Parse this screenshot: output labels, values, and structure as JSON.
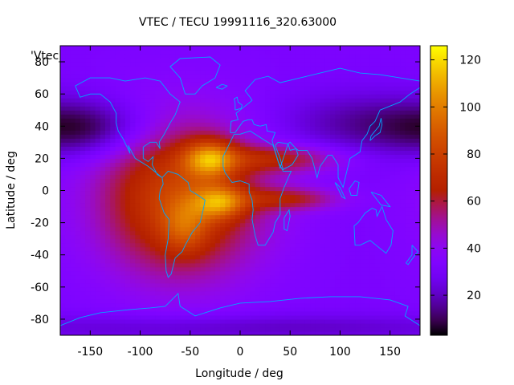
{
  "chart_data": {
    "type": "heatmap",
    "title": "VTEC / TECU 19991116_320.63000",
    "xlabel": "Longitude / deg",
    "ylabel": "Latitude / deg",
    "legend_label": "'Vtec_",
    "xlim": [
      -180,
      180
    ],
    "ylim": [
      -90,
      90
    ],
    "x_ticks": [
      -150,
      -100,
      -50,
      0,
      50,
      100,
      150
    ],
    "y_ticks": [
      -80,
      -60,
      -40,
      -20,
      0,
      20,
      40,
      60,
      80
    ],
    "x_tick_labels": [
      "-150",
      "-100",
      "-50",
      "0",
      "50",
      "100",
      "150"
    ],
    "y_tick_labels": [
      "-80",
      "-60",
      "-40",
      "-20",
      "0",
      "20",
      "40",
      "60",
      "80"
    ],
    "colorbar": {
      "range": [
        3,
        126
      ],
      "ticks": [
        20,
        40,
        60,
        80,
        100,
        120
      ],
      "tick_labels": [
        "20",
        "40",
        "60",
        "80",
        "100",
        "120"
      ],
      "palette": "black-purple-red-orange-yellow"
    },
    "grid": {
      "lon_step": 5,
      "lat_step": 2.5,
      "background_vtec": 32,
      "blobs": [
        {
          "lon": -60,
          "lat": -5,
          "sigma_lon": 58,
          "sigma_lat": 34,
          "amp": 50
        },
        {
          "lon": -30,
          "lat": 20,
          "sigma_lon": 18,
          "sigma_lat": 8,
          "amp": 45
        },
        {
          "lon": -20,
          "lat": -7,
          "sigma_lon": 18,
          "sigma_lat": 7,
          "amp": 40
        },
        {
          "lon": 40,
          "lat": 20,
          "sigma_lon": 45,
          "sigma_lat": 6,
          "amp": 28
        },
        {
          "lon": 50,
          "lat": -5,
          "sigma_lon": 35,
          "sigma_lat": 5,
          "amp": 26
        },
        {
          "lon": -55,
          "lat": -22,
          "sigma_lon": 16,
          "sigma_lat": 12,
          "amp": 22
        },
        {
          "lon": -150,
          "lat": 38,
          "sigma_lon": 45,
          "sigma_lat": 12,
          "amp": -20
        },
        {
          "lon": 130,
          "lat": 42,
          "sigma_lon": 70,
          "sigma_lat": 14,
          "amp": -16
        },
        {
          "lon": 0,
          "lat": -85,
          "sigma_lon": 200,
          "sigma_lat": 6,
          "amp": -12
        }
      ]
    },
    "coastlines": [
      {
        "name": "north-america",
        "points": [
          [
            -165,
            65
          ],
          [
            -150,
            70
          ],
          [
            -130,
            70
          ],
          [
            -115,
            68
          ],
          [
            -95,
            70
          ],
          [
            -80,
            68
          ],
          [
            -70,
            60
          ],
          [
            -60,
            55
          ],
          [
            -65,
            47
          ],
          [
            -70,
            42
          ],
          [
            -76,
            35
          ],
          [
            -81,
            30
          ],
          [
            -80,
            26
          ],
          [
            -84,
            30
          ],
          [
            -90,
            30
          ],
          [
            -97,
            27
          ],
          [
            -97,
            20
          ],
          [
            -92,
            18
          ],
          [
            -87,
            21
          ],
          [
            -88,
            16
          ],
          [
            -83,
            10
          ],
          [
            -78,
            8
          ],
          [
            -86,
            12
          ],
          [
            -92,
            15
          ],
          [
            -105,
            20
          ],
          [
            -112,
            28
          ],
          [
            -110,
            23
          ],
          [
            -117,
            32
          ],
          [
            -122,
            37
          ],
          [
            -124,
            42
          ],
          [
            -124,
            48
          ],
          [
            -130,
            55
          ],
          [
            -140,
            60
          ],
          [
            -150,
            60
          ],
          [
            -160,
            58
          ],
          [
            -165,
            65
          ]
        ]
      },
      {
        "name": "south-america",
        "points": [
          [
            -78,
            8
          ],
          [
            -72,
            12
          ],
          [
            -62,
            10
          ],
          [
            -52,
            5
          ],
          [
            -50,
            0
          ],
          [
            -42,
            -3
          ],
          [
            -35,
            -6
          ],
          [
            -37,
            -12
          ],
          [
            -40,
            -20
          ],
          [
            -48,
            -26
          ],
          [
            -55,
            -34
          ],
          [
            -58,
            -38
          ],
          [
            -65,
            -42
          ],
          [
            -67,
            -47
          ],
          [
            -69,
            -52
          ],
          [
            -72,
            -54
          ],
          [
            -74,
            -50
          ],
          [
            -75,
            -40
          ],
          [
            -72,
            -30
          ],
          [
            -71,
            -18
          ],
          [
            -76,
            -14
          ],
          [
            -81,
            -5
          ],
          [
            -80,
            0
          ],
          [
            -77,
            4
          ],
          [
            -78,
            8
          ]
        ]
      },
      {
        "name": "africa",
        "points": [
          [
            -17,
            21
          ],
          [
            -17,
            15
          ],
          [
            -15,
            11
          ],
          [
            -8,
            5
          ],
          [
            0,
            6
          ],
          [
            9,
            4
          ],
          [
            9,
            -1
          ],
          [
            12,
            -6
          ],
          [
            13,
            -12
          ],
          [
            12,
            -18
          ],
          [
            15,
            -28
          ],
          [
            18,
            -34
          ],
          [
            25,
            -34
          ],
          [
            33,
            -26
          ],
          [
            35,
            -20
          ],
          [
            40,
            -15
          ],
          [
            40,
            -5
          ],
          [
            44,
            2
          ],
          [
            51,
            12
          ],
          [
            43,
            12
          ],
          [
            38,
            18
          ],
          [
            33,
            28
          ],
          [
            25,
            31
          ],
          [
            10,
            37
          ],
          [
            0,
            35
          ],
          [
            -6,
            35
          ],
          [
            -10,
            30
          ],
          [
            -17,
            21
          ]
        ]
      },
      {
        "name": "eurasia",
        "points": [
          [
            -10,
            36
          ],
          [
            -9,
            43
          ],
          [
            -2,
            44
          ],
          [
            -4,
            48
          ],
          [
            2,
            51
          ],
          [
            8,
            54
          ],
          [
            12,
            56
          ],
          [
            10,
            58
          ],
          [
            5,
            62
          ],
          [
            15,
            69
          ],
          [
            28,
            71
          ],
          [
            40,
            67
          ],
          [
            60,
            70
          ],
          [
            80,
            73
          ],
          [
            100,
            76
          ],
          [
            120,
            73
          ],
          [
            140,
            72
          ],
          [
            160,
            70
          ],
          [
            180,
            68
          ],
          [
            180,
            64
          ],
          [
            170,
            60
          ],
          [
            160,
            55
          ],
          [
            140,
            50
          ],
          [
            135,
            43
          ],
          [
            130,
            40
          ],
          [
            127,
            35
          ],
          [
            122,
            31
          ],
          [
            120,
            24
          ],
          [
            110,
            20
          ],
          [
            106,
            10
          ],
          [
            103,
            2
          ],
          [
            98,
            8
          ],
          [
            98,
            16
          ],
          [
            92,
            22
          ],
          [
            88,
            22
          ],
          [
            80,
            15
          ],
          [
            77,
            8
          ],
          [
            72,
            20
          ],
          [
            67,
            25
          ],
          [
            58,
            25
          ],
          [
            56,
            26
          ],
          [
            50,
            30
          ],
          [
            48,
            29
          ],
          [
            40,
            14
          ],
          [
            32,
            31
          ],
          [
            35,
            36
          ],
          [
            27,
            37
          ],
          [
            26,
            41
          ],
          [
            20,
            40
          ],
          [
            14,
            41
          ],
          [
            12,
            44
          ],
          [
            8,
            44
          ],
          [
            3,
            43
          ],
          [
            -5,
            36
          ],
          [
            -10,
            36
          ]
        ]
      },
      {
        "name": "arabian-peninsula",
        "points": [
          [
            35,
            28
          ],
          [
            40,
            20
          ],
          [
            43,
            13
          ],
          [
            52,
            16
          ],
          [
            58,
            22
          ],
          [
            56,
            26
          ],
          [
            50,
            25
          ],
          [
            48,
            29
          ],
          [
            38,
            30
          ],
          [
            35,
            28
          ]
        ]
      },
      {
        "name": "greenland",
        "points": [
          [
            -55,
            60
          ],
          [
            -45,
            60
          ],
          [
            -38,
            65
          ],
          [
            -25,
            70
          ],
          [
            -20,
            78
          ],
          [
            -30,
            83
          ],
          [
            -60,
            82
          ],
          [
            -70,
            77
          ],
          [
            -60,
            70
          ],
          [
            -55,
            60
          ]
        ]
      },
      {
        "name": "australia",
        "points": [
          [
            114,
            -22
          ],
          [
            118,
            -20
          ],
          [
            125,
            -14
          ],
          [
            132,
            -11
          ],
          [
            136,
            -12
          ],
          [
            137,
            -16
          ],
          [
            142,
            -10
          ],
          [
            146,
            -18
          ],
          [
            153,
            -25
          ],
          [
            151,
            -34
          ],
          [
            146,
            -39
          ],
          [
            138,
            -35
          ],
          [
            130,
            -31
          ],
          [
            120,
            -34
          ],
          [
            115,
            -34
          ],
          [
            114,
            -22
          ]
        ]
      },
      {
        "name": "madagascar",
        "points": [
          [
            44,
            -17
          ],
          [
            49,
            -12
          ],
          [
            50,
            -16
          ],
          [
            47,
            -25
          ],
          [
            44,
            -24
          ],
          [
            44,
            -17
          ]
        ]
      },
      {
        "name": "indonesia",
        "points": [
          [
            95,
            5
          ],
          [
            100,
            2
          ],
          [
            105,
            -5
          ],
          [
            102,
            -4
          ],
          [
            95,
            5
          ]
        ]
      },
      {
        "name": "borneo",
        "points": [
          [
            109,
            1
          ],
          [
            115,
            6
          ],
          [
            119,
            5
          ],
          [
            117,
            -3
          ],
          [
            111,
            -3
          ],
          [
            109,
            1
          ]
        ]
      },
      {
        "name": "new-guinea",
        "points": [
          [
            131,
            -1
          ],
          [
            141,
            -3
          ],
          [
            150,
            -10
          ],
          [
            141,
            -9
          ],
          [
            131,
            -1
          ]
        ]
      },
      {
        "name": "japan",
        "points": [
          [
            130,
            31
          ],
          [
            135,
            34
          ],
          [
            140,
            36
          ],
          [
            142,
            41
          ],
          [
            141,
            45
          ],
          [
            139,
            40
          ],
          [
            131,
            34
          ],
          [
            130,
            31
          ]
        ]
      },
      {
        "name": "great-britain",
        "points": [
          [
            -5,
            50
          ],
          [
            1,
            51
          ],
          [
            2,
            53
          ],
          [
            -2,
            55
          ],
          [
            -3,
            58
          ],
          [
            -6,
            57
          ],
          [
            -5,
            54
          ],
          [
            -5,
            50
          ]
        ]
      },
      {
        "name": "iceland",
        "points": [
          [
            -24,
            64
          ],
          [
            -18,
            66
          ],
          [
            -13,
            65
          ],
          [
            -18,
            63
          ],
          [
            -24,
            64
          ]
        ]
      },
      {
        "name": "new-zealand",
        "points": [
          [
            172,
            -34
          ],
          [
            178,
            -38
          ],
          [
            174,
            -41
          ],
          [
            168,
            -46
          ],
          [
            166,
            -45
          ],
          [
            172,
            -40
          ],
          [
            172,
            -34
          ]
        ]
      },
      {
        "name": "antarctica",
        "points": [
          [
            -180,
            -84
          ],
          [
            -160,
            -79
          ],
          [
            -140,
            -76
          ],
          [
            -110,
            -74
          ],
          [
            -90,
            -73
          ],
          [
            -75,
            -72
          ],
          [
            -62,
            -64
          ],
          [
            -60,
            -72
          ],
          [
            -45,
            -78
          ],
          [
            -20,
            -73
          ],
          [
            0,
            -70
          ],
          [
            30,
            -69
          ],
          [
            60,
            -67
          ],
          [
            90,
            -66
          ],
          [
            120,
            -66
          ],
          [
            150,
            -68
          ],
          [
            168,
            -72
          ],
          [
            165,
            -78
          ],
          [
            180,
            -84
          ]
        ]
      }
    ]
  }
}
